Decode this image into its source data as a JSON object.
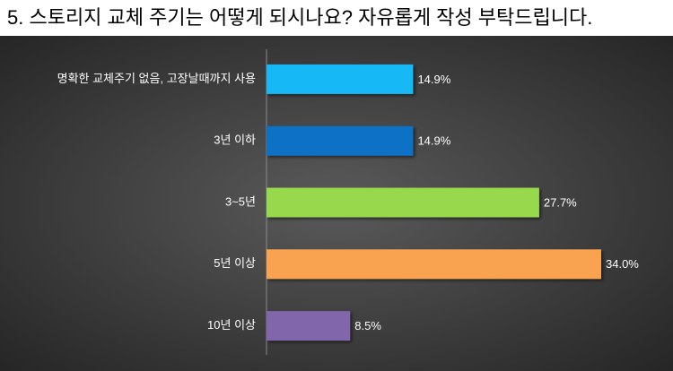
{
  "chart_data": {
    "type": "hbar",
    "title": "5. 스토리지 교체 주기는 어떻게 되시나요? 자유롭게 작성 부탁드립니다.",
    "categories": [
      "명확한 교체주기 없음, 고장날때까지 사용",
      "3년 이하",
      "3~5년",
      "5년 이상",
      "10년 이상"
    ],
    "values": [
      14.9,
      14.9,
      27.7,
      34.0,
      8.5
    ],
    "value_labels": [
      "14.9%",
      "14.9%",
      "27.7%",
      "34.0%",
      "8.5%"
    ],
    "colors": [
      "#14b9f5",
      "#0e72c6",
      "#98d84e",
      "#f9a24f",
      "#8166ab"
    ]
  }
}
